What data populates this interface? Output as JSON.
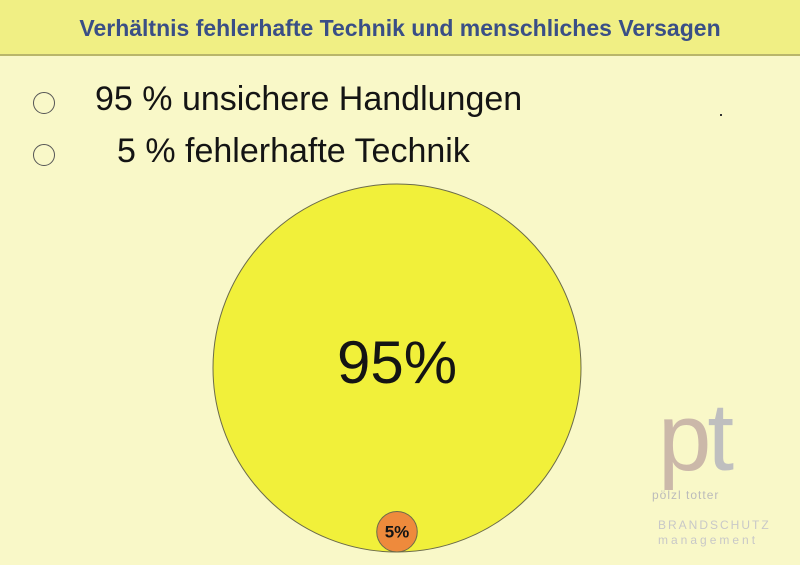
{
  "title": "Verhältnis fehlerhafte Technik und menschliches Versagen",
  "chart_data": {
    "type": "bubble",
    "title": "Verhältnis fehlerhafte Technik und menschliches Versagen",
    "categories": [
      "95 % unsichere Handlungen",
      "  5 % fehlerhafte Technik"
    ],
    "values": [
      95,
      5
    ],
    "data_labels": [
      "95%",
      "5%"
    ],
    "colors": [
      "#f1f03a",
      "#ee8a3c"
    ],
    "legend_position": "top-left"
  },
  "legend": [
    {
      "label": "95 % unsichere Handlungen",
      "color": "#f1f03a",
      "icon": "yellow-circle"
    },
    {
      "label": "5 % fehlerhafte Technik",
      "color": "#ee8a3c",
      "icon": "orange-circle"
    }
  ],
  "watermark": {
    "logo_text": "pt",
    "name": "pölzl totter",
    "line1": "BRANDSCHUTZ",
    "line2": "management"
  },
  "colors": {
    "background": "#f9f8c8",
    "title_bar": "#f0ef84",
    "title_text": "#3a4f86"
  }
}
